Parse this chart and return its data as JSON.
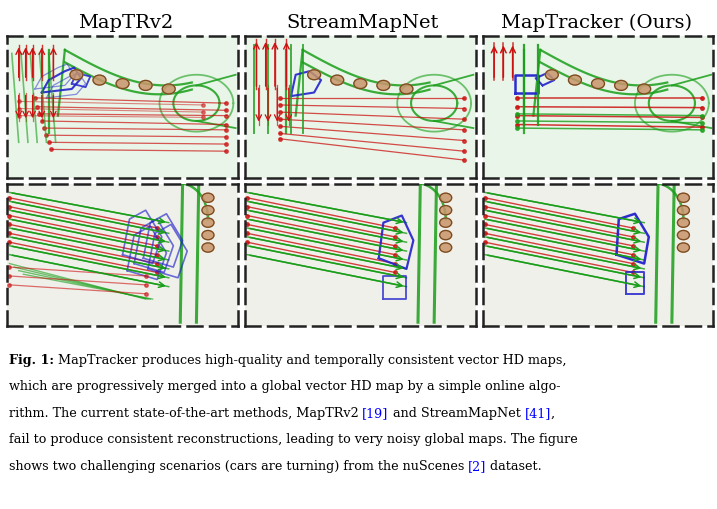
{
  "col_headers": [
    "MapTRv2",
    "StreamMapNet",
    "MapTracker (Ours)"
  ],
  "col_header_fontsize": 14,
  "background_color": "#ffffff",
  "caption_bold": "Fig. 1:",
  "caption_fontsize": 9.2,
  "map_bg": "#e8f5e8",
  "car_color": "#c8956a",
  "car_edge": "#7a4a20",
  "green": "#1a9e1a",
  "red": "#cc1111",
  "blue": "#2222cc",
  "blue_ref": "#4444cc"
}
